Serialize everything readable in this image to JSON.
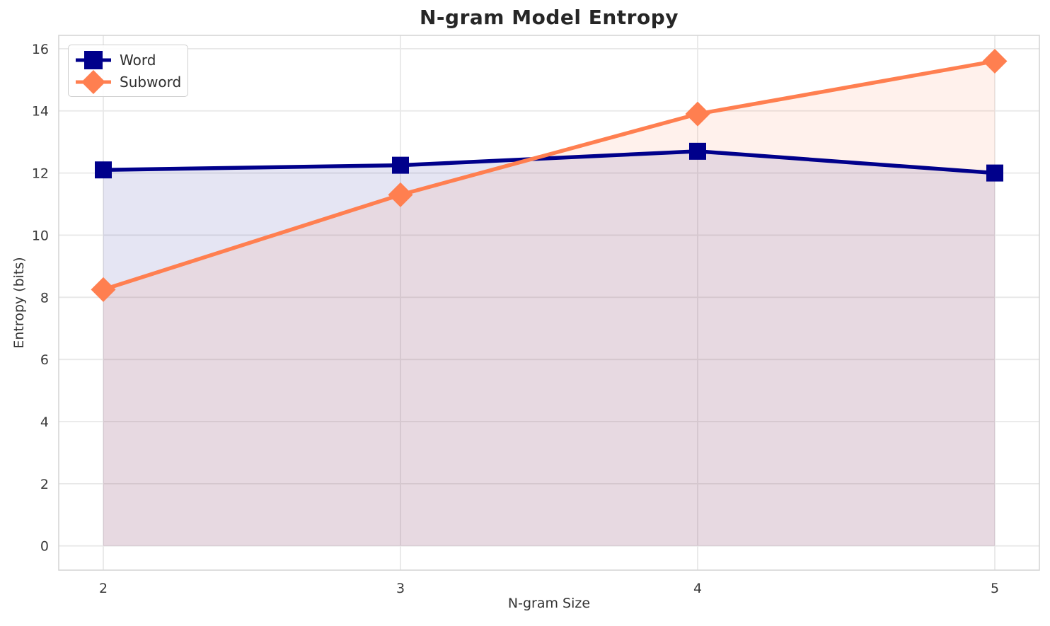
{
  "chart_data": {
    "type": "line",
    "title": "N-gram Model Entropy",
    "xlabel": "N-gram Size",
    "ylabel": "Entropy (bits)",
    "x": [
      2,
      3,
      4,
      5
    ],
    "series": [
      {
        "name": "Word",
        "color": "#00008B",
        "marker": "square",
        "values": [
          12.1,
          12.25,
          12.7,
          12.0
        ],
        "fill_to_zero": true,
        "fill_opacity": 0.1
      },
      {
        "name": "Subword",
        "color": "#FF7F50",
        "marker": "diamond",
        "values": [
          8.25,
          11.3,
          13.9,
          15.6
        ],
        "fill_to_zero": true,
        "fill_opacity": 0.11
      }
    ],
    "xticks": [
      2,
      3,
      4,
      5
    ],
    "yticks": [
      0,
      2,
      4,
      6,
      8,
      10,
      12,
      14,
      16
    ],
    "xlim": [
      1.85,
      5.15
    ],
    "ylim": [
      -0.78,
      16.43
    ],
    "grid": true,
    "grid_color": "#E8E8E8",
    "spine_color": "#D4D4D4",
    "tick_label_color": "#3B3B3B",
    "legend_position": "upper left"
  }
}
